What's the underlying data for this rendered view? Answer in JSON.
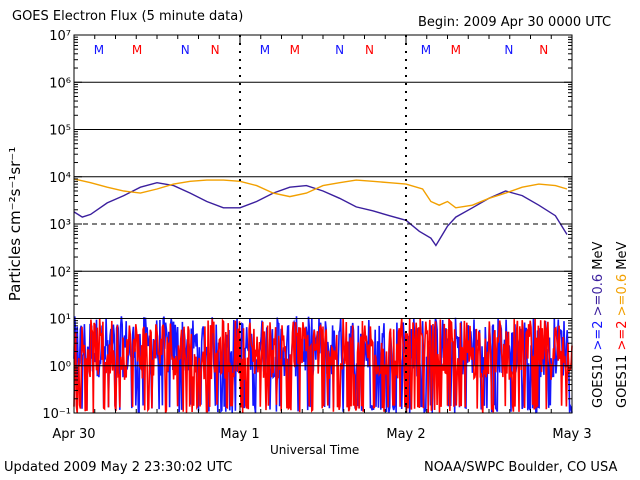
{
  "header": {
    "title": "GOES Electron Flux (5 minute data)",
    "begin": "Begin: 2009 Apr 30 0000 UTC"
  },
  "footer": {
    "updated": "Updated 2009 May  2 23:30:02 UTC",
    "credit": "NOAA/SWPC Boulder, CO USA"
  },
  "colors": {
    "goes10_high": "#3b1f9e",
    "goes11_high": "#f2a000",
    "goes10_low": "#1515ff",
    "goes11_low": "#ff0000",
    "local_noon_marker": "#1515ff",
    "local_midnight_marker": "#ff0000"
  },
  "chart_data": {
    "type": "line",
    "title": "GOES Electron Flux (5 minute data)",
    "xlabel": "Universal Time",
    "ylabel": "Particles cm⁻²s⁻¹sr⁻¹",
    "yscale": "log",
    "ylim": [
      0.1,
      10000000
    ],
    "y_tick_labels": [
      "10⁻¹",
      "10⁰",
      "10¹",
      "10²",
      "10³",
      "10⁴",
      "10⁵",
      "10⁶",
      "10⁷"
    ],
    "x_tick_labels": [
      "Apr 30",
      "May 1",
      "May 2",
      "May 3"
    ],
    "xlim_days": [
      0,
      3
    ],
    "grid": "horizontal at each decade",
    "reference_lines": [
      {
        "y": 1000,
        "style": "dashed"
      },
      {
        "y": 10,
        "style": "solid"
      }
    ],
    "markers": {
      "top_labels": [
        "M",
        "M",
        "N",
        "N",
        "M",
        "M",
        "N",
        "N",
        "M",
        "M",
        "N",
        "N"
      ],
      "top_label_x_days": [
        0.15,
        0.38,
        0.67,
        0.85,
        1.15,
        1.33,
        1.6,
        1.78,
        2.12,
        2.3,
        2.62,
        2.83
      ],
      "top_label_colors": [
        "#1515ff",
        "#ff0000",
        "#1515ff",
        "#ff0000",
        "#1515ff",
        "#ff0000",
        "#1515ff",
        "#ff0000",
        "#1515ff",
        "#ff0000",
        "#1515ff",
        "#ff0000"
      ]
    },
    "legend": {
      "placement": "right, vertical",
      "entries": [
        {
          "label": "GOES10",
          "color": "#000000"
        },
        {
          "label": ">=2",
          "color": "#1515ff"
        },
        {
          "label": ">=0.6",
          "color": "#3b1f9e"
        },
        {
          "label": "GOES11",
          "color": "#000000"
        },
        {
          "label": ">=2",
          "color": "#ff0000"
        },
        {
          "label": ">=0.6",
          "color": "#f2a000"
        },
        {
          "label": "MeV",
          "color": "#000000"
        }
      ]
    },
    "series": [
      {
        "name": "GOES10 >=0.6 MeV",
        "color": "#3b1f9e",
        "x": [
          0.0,
          0.05,
          0.1,
          0.2,
          0.3,
          0.4,
          0.5,
          0.6,
          0.7,
          0.8,
          0.9,
          1.0,
          1.1,
          1.2,
          1.3,
          1.4,
          1.5,
          1.6,
          1.7,
          1.8,
          1.9,
          2.0,
          2.08,
          2.15,
          2.18,
          2.22,
          2.25,
          2.3,
          2.4,
          2.5,
          2.6,
          2.7,
          2.8,
          2.9,
          2.97
        ],
        "values": [
          1800,
          1400,
          1600,
          2800,
          4000,
          6000,
          7500,
          6500,
          4500,
          3000,
          2200,
          2200,
          3000,
          4500,
          6000,
          6500,
          5000,
          3500,
          2300,
          1900,
          1500,
          1200,
          700,
          500,
          350,
          600,
          900,
          1400,
          2200,
          3500,
          5000,
          4000,
          2500,
          1500,
          600
        ]
      },
      {
        "name": "GOES11 >=0.6 MeV",
        "color": "#f2a000",
        "x": [
          0.0,
          0.1,
          0.2,
          0.3,
          0.4,
          0.5,
          0.6,
          0.7,
          0.8,
          0.9,
          1.0,
          1.1,
          1.2,
          1.3,
          1.4,
          1.5,
          1.6,
          1.7,
          1.8,
          1.9,
          2.0,
          2.1,
          2.15,
          2.2,
          2.25,
          2.3,
          2.4,
          2.5,
          2.6,
          2.7,
          2.8,
          2.9,
          2.97
        ],
        "values": [
          9000,
          7500,
          6000,
          5000,
          4500,
          5500,
          7000,
          8000,
          8500,
          8500,
          8000,
          6500,
          4500,
          3800,
          4500,
          6500,
          7500,
          8500,
          8000,
          7500,
          7000,
          5500,
          3000,
          2500,
          3000,
          2200,
          2500,
          3500,
          4500,
          6000,
          7000,
          6500,
          5500
        ]
      }
    ],
    "noisy_series": [
      {
        "name": "GOES10 >=2 MeV",
        "color": "#1515ff",
        "typical_range": [
          0.1,
          12
        ]
      },
      {
        "name": "GOES11 >=2 MeV",
        "color": "#ff0000",
        "typical_range": [
          0.1,
          12
        ]
      }
    ]
  }
}
